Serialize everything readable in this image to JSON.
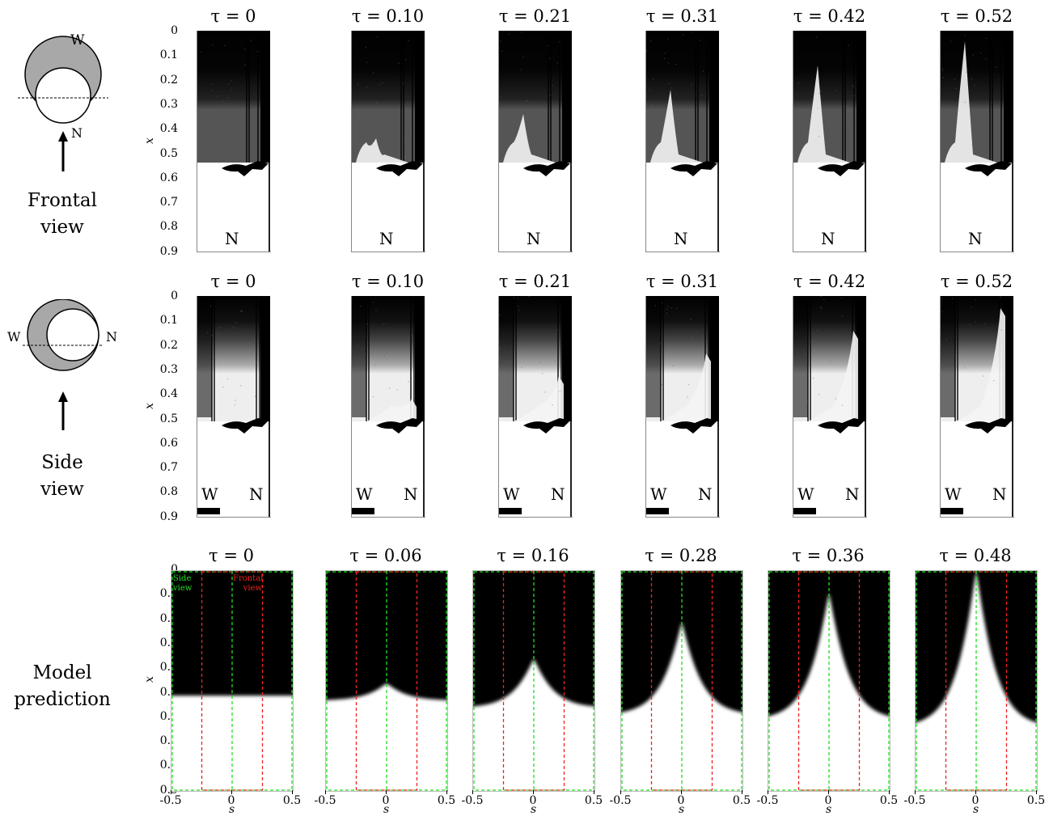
{
  "rows": [
    {
      "id": "frontal",
      "label_lines": [
        "Frontal",
        "view"
      ],
      "schematic_labels": {
        "top": "W",
        "bottom": "N"
      },
      "y_axis_label": "x",
      "y_ticks": [
        "0",
        "0.1",
        "0.2",
        "0.3",
        "0.4",
        "0.5",
        "0.6",
        "0.7",
        "0.8",
        "0.9"
      ],
      "taus": [
        "τ = 0",
        "τ = 0.10",
        "τ = 0.21",
        "τ = 0.31",
        "τ = 0.42",
        "τ = 0.52"
      ],
      "panel_label": "N"
    },
    {
      "id": "side",
      "label_lines": [
        "Side",
        "view"
      ],
      "schematic_labels": {
        "left": "W",
        "right": "N"
      },
      "y_axis_label": "x",
      "y_ticks": [
        "0",
        "0.1",
        "0.2",
        "0.3",
        "0.4",
        "0.5",
        "0.6",
        "0.7",
        "0.8",
        "0.9"
      ],
      "taus": [
        "τ = 0",
        "τ = 0.10",
        "τ = 0.21",
        "τ = 0.31",
        "τ = 0.42",
        "τ = 0.52"
      ],
      "panel_labels": [
        "W",
        "N"
      ]
    },
    {
      "id": "model",
      "label_lines": [
        "Model",
        "prediction"
      ],
      "y_axis_label": "x",
      "x_axis_label": "s",
      "y_ticks": [
        "0",
        "0.1",
        "0.2",
        "0.3",
        "0.4",
        "0.5",
        "0.6",
        "0.7",
        "0.8",
        "0.9"
      ],
      "x_ticks": [
        "-0.5",
        "0",
        "0.5"
      ],
      "taus": [
        "τ = 0",
        "τ = 0.06",
        "τ = 0.16",
        "τ = 0.28",
        "τ = 0.36",
        "τ = 0.48"
      ],
      "overlay_labels": {
        "side": [
          "Side",
          "view"
        ],
        "frontal": [
          "Frontal",
          "view"
        ]
      },
      "overlay_colors": {
        "side": "#22dd22",
        "frontal": "#ee2222"
      }
    }
  ],
  "chart_data": {
    "type": "heatmap",
    "xlabel": "s",
    "ylabel": "x",
    "xlim": [
      -0.5,
      0.5
    ],
    "ylim": [
      0,
      0.9
    ],
    "series": [
      {
        "name": "τ = 0",
        "interface_x_at_s0": 0.51,
        "interface_x_at_edges": 0.51
      },
      {
        "name": "τ = 0.06",
        "interface_x_at_s0": 0.46,
        "interface_x_at_edges": 0.53
      },
      {
        "name": "τ = 0.16",
        "interface_x_at_s0": 0.36,
        "interface_x_at_edges": 0.56
      },
      {
        "name": "τ = 0.28",
        "interface_x_at_s0": 0.21,
        "interface_x_at_edges": 0.59
      },
      {
        "name": "τ = 0.36",
        "interface_x_at_s0": 0.09,
        "interface_x_at_edges": 0.61
      },
      {
        "name": "τ = 0.48",
        "interface_x_at_s0": 0.0,
        "interface_x_at_edges": 0.64
      }
    ]
  }
}
